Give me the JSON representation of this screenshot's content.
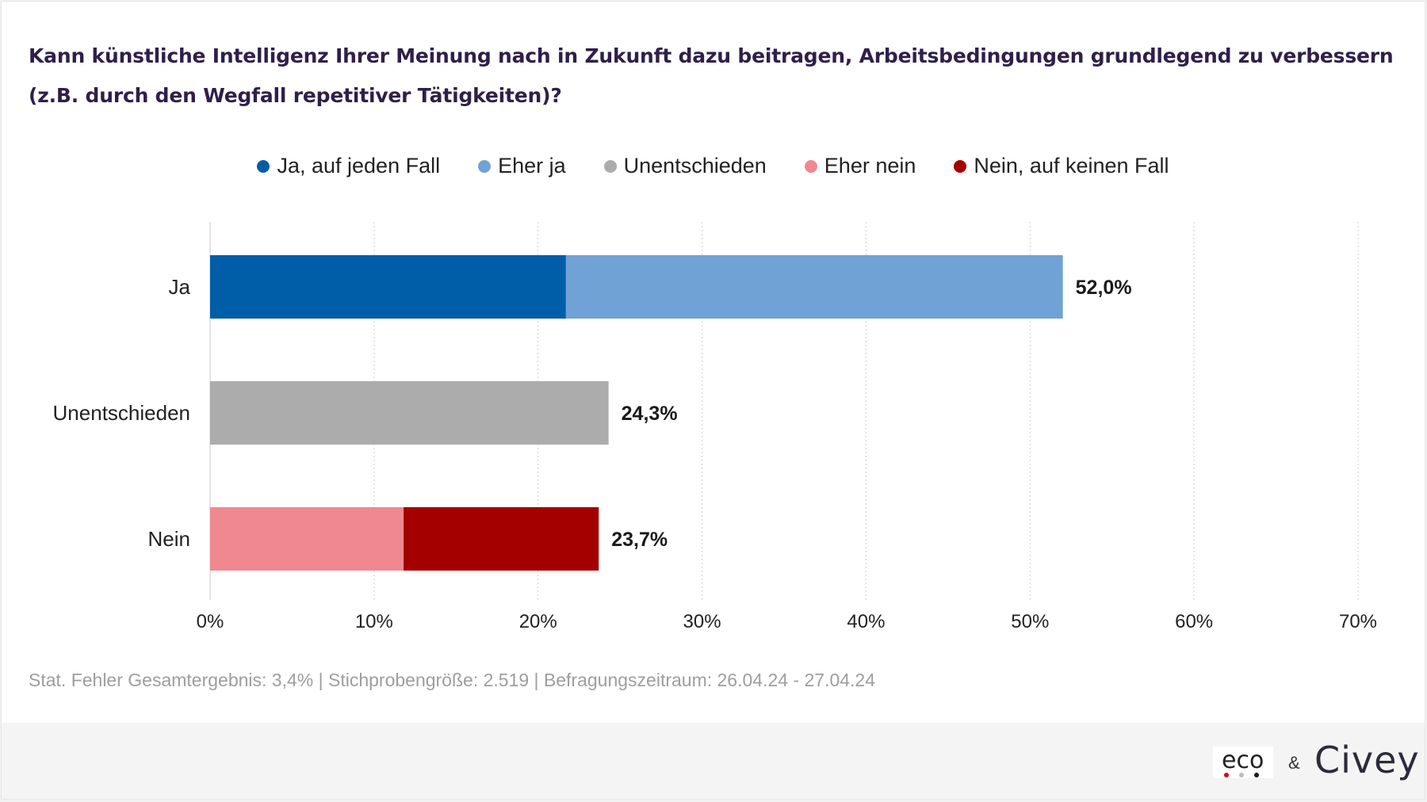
{
  "title": "Kann künstliche Intelligenz Ihrer Meinung nach in Zukunft dazu beitragen, Arbeitsbedingungen grundlegend zu verbessern (z.B. durch den Wegfall repetitiver Tätigkeiten)?",
  "legend": [
    {
      "label": "Ja, auf jeden Fall",
      "color": "#005ea8"
    },
    {
      "label": "Eher ja",
      "color": "#70a2d6"
    },
    {
      "label": "Unentschieden",
      "color": "#acacac"
    },
    {
      "label": "Eher nein",
      "color": "#f0898f"
    },
    {
      "label": "Nein, auf keinen Fall",
      "color": "#a50000"
    }
  ],
  "chart_data": {
    "type": "bar",
    "orientation": "horizontal",
    "stacked": true,
    "categories": [
      "Ja",
      "Unentschieden",
      "Nein"
    ],
    "series": [
      {
        "name": "Ja, auf jeden Fall",
        "color": "#005ea8",
        "values": [
          21.7,
          0,
          0
        ]
      },
      {
        "name": "Eher ja",
        "color": "#70a2d6",
        "values": [
          30.3,
          0,
          0
        ]
      },
      {
        "name": "Unentschieden",
        "color": "#acacac",
        "values": [
          0,
          24.3,
          0
        ]
      },
      {
        "name": "Eher nein",
        "color": "#f0898f",
        "values": [
          0,
          0,
          11.8
        ]
      },
      {
        "name": "Nein, auf keinen Fall",
        "color": "#a50000",
        "values": [
          0,
          0,
          11.9
        ]
      }
    ],
    "totals": [
      "52,0%",
      "24,3%",
      "23,7%"
    ],
    "xticks": [
      "0%",
      "10%",
      "20%",
      "30%",
      "40%",
      "50%",
      "60%",
      "70%"
    ],
    "xlim": [
      0,
      70
    ],
    "grid": true,
    "legend_position": "top"
  },
  "footnote": "Stat. Fehler Gesamtergebnis: 3,4% | Stichprobengröße: 2.519 | Befragungszeitraum: 26.04.24 - 27.04.24",
  "logos": {
    "eco": "eco",
    "ampersand": "&",
    "civey": "Civey",
    "eco_dot_colors": [
      "#d6001c",
      "#bdbdbd",
      "#1a1a1a"
    ]
  }
}
